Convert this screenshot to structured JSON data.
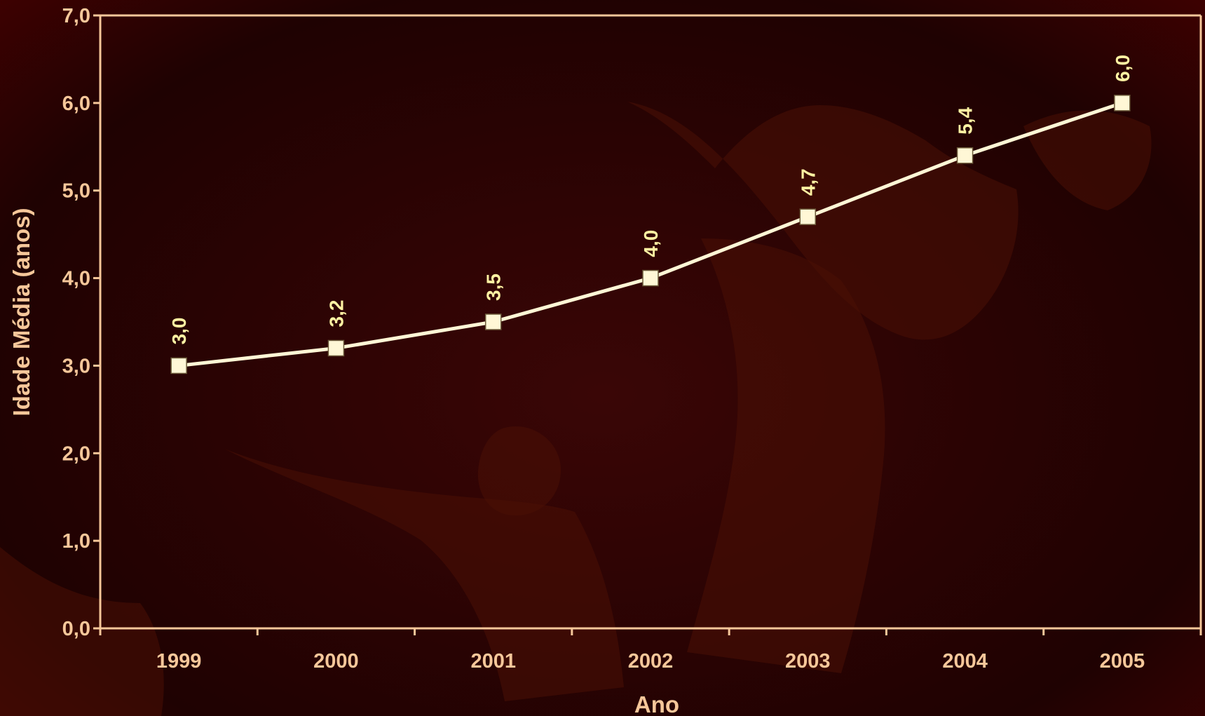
{
  "chart_data": {
    "type": "line",
    "categories": [
      "1999",
      "2000",
      "2001",
      "2002",
      "2003",
      "2004",
      "2005"
    ],
    "series": [
      {
        "values": [
          3.0,
          3.2,
          3.5,
          4.0,
          4.7,
          5.4,
          6.0
        ]
      }
    ],
    "data_labels": [
      "3,0",
      "3,2",
      "3,5",
      "4,0",
      "4,7",
      "5,4",
      "6,0"
    ],
    "xlabel": "Ano",
    "ylabel": "Idade Média (anos)",
    "ylim": [
      0,
      7
    ],
    "yticks": [
      0,
      1,
      2,
      3,
      4,
      5,
      6,
      7
    ],
    "ytick_labels": [
      "0,0",
      "1,0",
      "2,0",
      "3,0",
      "4,0",
      "5,0",
      "6,0",
      "7,0"
    ],
    "grid": false,
    "legend": "none",
    "colors": {
      "axis": "#f6c79a",
      "line": "#fff7d6",
      "data_label": "#fff3a3",
      "background": "#2a0303"
    }
  }
}
